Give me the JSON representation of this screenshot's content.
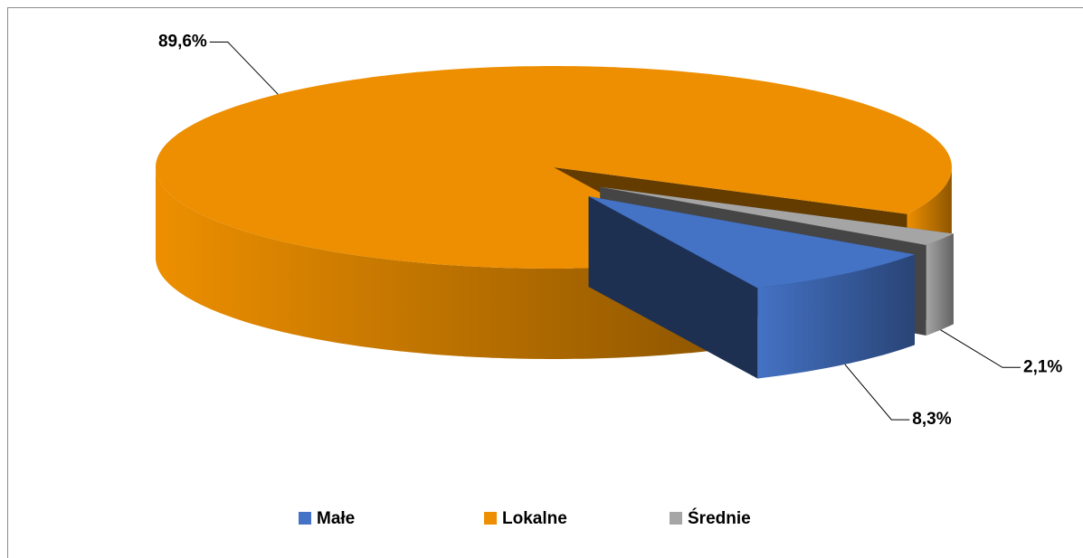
{
  "chart_data": {
    "type": "pie3d",
    "categories": [
      "Małe",
      "Lokalne",
      "Średnie"
    ],
    "values": [
      8.3,
      89.6,
      2.1
    ],
    "value_labels": [
      "8,3%",
      "89,6%",
      "2,1%"
    ],
    "colors": [
      "#4472c4",
      "#ed8f00",
      "#a5a5a5"
    ],
    "legend": "bottom"
  }
}
